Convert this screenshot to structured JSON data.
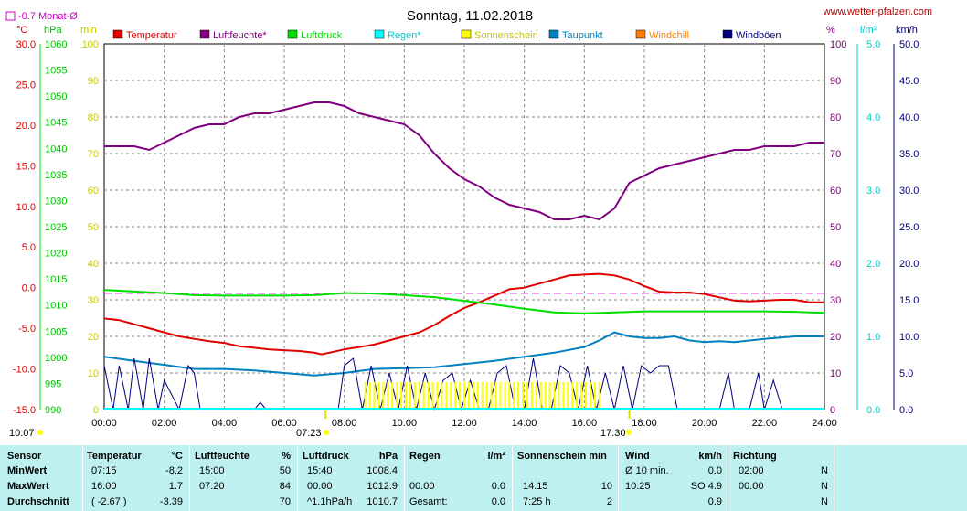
{
  "header": {
    "title": "Sonntag, 11.02.2018",
    "site": "www.wetter-pfalzen.com",
    "monthly_avg": "-0.7 Monat-Ø"
  },
  "units": {
    "celsius": "°C",
    "hpa": "hPa",
    "min": "min",
    "percent": "%",
    "rain": "l/m²",
    "kmh": "km/h"
  },
  "legend": [
    {
      "label": "Temperatur",
      "color": "#e00000"
    },
    {
      "label": "Luftfeuchte*",
      "color": "#800080"
    },
    {
      "label": "Luftdruck",
      "color": "#00e000"
    },
    {
      "label": "Regen*",
      "color": "#00ffff"
    },
    {
      "label": "Sonnenschein",
      "color": "#ffff00"
    },
    {
      "label": "Taupunkt",
      "color": "#0080c0"
    },
    {
      "label": "Windchill",
      "color": "#ff8000"
    },
    {
      "label": "Windböen",
      "color": "#000080"
    }
  ],
  "axes": {
    "temp_ticks": [
      "30.0",
      "25.0",
      "20.0",
      "15.0",
      "10.0",
      "5.0",
      "0.0",
      "-5.0",
      "-10.0",
      "-15.0"
    ],
    "hpa_ticks": [
      "1060",
      "1055",
      "1050",
      "1045",
      "1040",
      "1035",
      "1030",
      "1025",
      "1020",
      "1015",
      "1010",
      "1005",
      "1000",
      "995",
      "990"
    ],
    "min_ticks": [
      "100",
      "90",
      "80",
      "70",
      "60",
      "50",
      "40",
      "30",
      "20",
      "10",
      "0"
    ],
    "pct_ticks": [
      "100",
      "90",
      "80",
      "70",
      "60",
      "50",
      "40",
      "30",
      "20",
      "10",
      "0"
    ],
    "rain_ticks": [
      "5.0",
      "4.0",
      "3.0",
      "2.0",
      "1.0",
      "0.0"
    ],
    "wind_ticks": [
      "50.0",
      "45.0",
      "40.0",
      "35.0",
      "30.0",
      "25.0",
      "20.0",
      "15.0",
      "10.0",
      "5.0",
      "0.0"
    ],
    "x_ticks": [
      "00:00",
      "02:00",
      "04:00",
      "06:00",
      "08:00",
      "10:00",
      "12:00",
      "14:00",
      "16:00",
      "18:00",
      "20:00",
      "22:00",
      "24:00"
    ]
  },
  "sun_markers": {
    "moonrise": "10:07",
    "sunrise": "07:23",
    "sunset": "17:30"
  },
  "chart_data": {
    "type": "line",
    "title": "Sonntag, 11.02.2018",
    "x_unit": "hours",
    "xlim": [
      0,
      24
    ],
    "monthly_avg_temp": -0.7,
    "series": [
      {
        "name": "Temperatur",
        "axis": "temp",
        "ylim": [
          -15,
          30
        ],
        "color": "#e00000",
        "x": [
          0,
          0.5,
          1,
          1.5,
          2,
          2.5,
          3,
          3.5,
          4,
          4.5,
          5,
          5.5,
          6,
          6.5,
          7,
          7.25,
          7.5,
          8,
          8.5,
          9,
          9.5,
          10,
          10.5,
          11,
          11.5,
          12,
          12.5,
          13,
          13.5,
          14,
          14.5,
          15,
          15.5,
          16,
          16.5,
          17,
          17.5,
          18,
          18.5,
          19,
          19.5,
          20,
          20.5,
          21,
          21.5,
          22,
          22.5,
          23,
          23.5,
          24
        ],
        "y": [
          -3.8,
          -4.0,
          -4.5,
          -5.0,
          -5.5,
          -6.0,
          -6.3,
          -6.6,
          -6.8,
          -7.2,
          -7.4,
          -7.6,
          -7.7,
          -7.8,
          -8.0,
          -8.2,
          -8.0,
          -7.6,
          -7.3,
          -7.0,
          -6.5,
          -6.0,
          -5.5,
          -4.6,
          -3.5,
          -2.5,
          -1.8,
          -1.0,
          -0.2,
          0.0,
          0.5,
          1.0,
          1.5,
          1.6,
          1.7,
          1.5,
          1.0,
          0.2,
          -0.5,
          -0.6,
          -0.6,
          -0.8,
          -1.2,
          -1.6,
          -1.7,
          -1.6,
          -1.5,
          -1.5,
          -1.8,
          -1.8
        ]
      },
      {
        "name": "Luftfeuchte*",
        "axis": "pct",
        "ylim": [
          0,
          100
        ],
        "color": "#800080",
        "x": [
          0,
          0.5,
          1,
          1.5,
          2,
          2.5,
          3,
          3.5,
          4,
          4.5,
          5,
          5.5,
          6,
          6.5,
          7,
          7.5,
          8,
          8.5,
          9,
          9.5,
          10,
          10.5,
          11,
          11.5,
          12,
          12.5,
          13,
          13.5,
          14,
          14.5,
          15,
          15.5,
          16,
          16.5,
          17,
          17.5,
          18,
          18.5,
          19,
          19.5,
          20,
          20.5,
          21,
          21.5,
          22,
          22.5,
          23,
          23.5,
          24
        ],
        "y": [
          72,
          72,
          72,
          71,
          73,
          75,
          77,
          78,
          78,
          80,
          81,
          81,
          82,
          83,
          84,
          84,
          83,
          81,
          80,
          79,
          78,
          75,
          70,
          66,
          63,
          61,
          58,
          56,
          55,
          54,
          52,
          52,
          53,
          52,
          55,
          62,
          64,
          66,
          67,
          68,
          69,
          70,
          71,
          71,
          72,
          72,
          72,
          73,
          73
        ]
      },
      {
        "name": "Luftdruck",
        "axis": "hpa",
        "ylim": [
          990,
          1060
        ],
        "color": "#00e000",
        "x": [
          0,
          1,
          2,
          3,
          4,
          5,
          6,
          7,
          8,
          9,
          10,
          11,
          12,
          13,
          14,
          15,
          16,
          17,
          18,
          19,
          20,
          21,
          22,
          23,
          24
        ],
        "y": [
          1012.9,
          1012.6,
          1012.3,
          1011.9,
          1011.8,
          1011.8,
          1011.8,
          1011.9,
          1012.3,
          1012.2,
          1011.9,
          1011.5,
          1010.8,
          1010.1,
          1009.3,
          1008.6,
          1008.4,
          1008.6,
          1008.8,
          1008.8,
          1008.8,
          1008.8,
          1008.8,
          1008.7,
          1008.5
        ]
      },
      {
        "name": "Taupunkt",
        "axis": "temp",
        "ylim": [
          -15,
          30
        ],
        "color": "#0080c0",
        "x": [
          0,
          1,
          2,
          3,
          4,
          5,
          6,
          7,
          8,
          9,
          10,
          11,
          12,
          13,
          14,
          15,
          16,
          16.5,
          17,
          17.5,
          18,
          18.5,
          19,
          19.5,
          20,
          20.5,
          21,
          22,
          23,
          24
        ],
        "y": [
          -8.5,
          -9.0,
          -9.5,
          -10.0,
          -10.0,
          -10.2,
          -10.5,
          -10.8,
          -10.5,
          -10.0,
          -9.9,
          -9.8,
          -9.4,
          -9.0,
          -8.5,
          -8.0,
          -7.3,
          -6.5,
          -5.5,
          -6.0,
          -6.2,
          -6.2,
          -6.0,
          -6.5,
          -6.7,
          -6.6,
          -6.7,
          -6.3,
          -6.0,
          -6.0
        ]
      },
      {
        "name": "Windböen",
        "axis": "wind",
        "ylim": [
          0,
          50
        ],
        "color": "#000080",
        "x": [
          0,
          0.3,
          0.5,
          0.8,
          1.0,
          1.3,
          1.5,
          1.8,
          2.0,
          2.5,
          2.8,
          3.0,
          3.2,
          3.5,
          4.0,
          5.0,
          5.2,
          5.4,
          6.0,
          7.0,
          7.4,
          7.8,
          8.0,
          8.3,
          8.6,
          8.9,
          9.2,
          9.5,
          9.8,
          10.1,
          10.4,
          10.7,
          11.0,
          11.3,
          11.6,
          11.9,
          12.2,
          12.5,
          12.8,
          13.1,
          13.4,
          13.7,
          14.0,
          14.3,
          14.6,
          14.9,
          15.2,
          15.5,
          15.8,
          16.1,
          16.4,
          16.7,
          17.0,
          17.3,
          17.6,
          17.9,
          18.2,
          18.5,
          18.8,
          19.1,
          19.4,
          19.7,
          20.0,
          20.5,
          20.8,
          21.0,
          21.5,
          21.8,
          22.0,
          22.3,
          22.6,
          23.0,
          24.0
        ],
        "y": [
          6,
          0,
          6,
          0,
          7,
          0,
          7,
          0,
          4,
          0,
          6,
          5,
          0,
          0,
          0,
          0,
          1,
          0,
          0,
          0,
          0,
          0,
          6,
          7,
          0,
          6,
          0,
          5,
          0,
          6,
          0,
          5,
          0,
          4,
          5,
          0,
          4,
          0,
          0,
          5,
          6,
          0,
          0,
          7,
          0,
          0,
          6,
          5,
          0,
          6,
          0,
          5,
          0,
          6,
          0,
          6,
          5,
          6,
          6,
          0,
          0,
          0,
          0,
          0,
          5,
          0,
          0,
          5,
          0,
          4,
          0,
          0,
          0
        ]
      },
      {
        "name": "Sonnenschein",
        "axis": "min",
        "ylim": [
          0,
          100
        ],
        "color": "#ffff00",
        "x": [
          8.67,
          9,
          10,
          11,
          12,
          13,
          14,
          15,
          16,
          16.5
        ],
        "y": [
          5,
          5,
          5,
          5,
          5,
          5,
          5,
          5,
          5,
          5
        ]
      }
    ],
    "windchill": [],
    "rain": []
  },
  "table": {
    "header": [
      "Sensor",
      "Temperatur",
      "°C",
      "Luftfeuchte",
      "%",
      "Luftdruck",
      "hPa",
      "Regen",
      "l/m²",
      "Sonnenschein min",
      "Wind",
      "km/h",
      "Richtung"
    ],
    "rows": [
      {
        "label": "MinWert",
        "t_time": "07:15",
        "t_val": "-8.2",
        "h_time": "15:00",
        "h_val": "50",
        "p_time": "15:40",
        "p_val": "1008.4",
        "r_time": "",
        "r_val": "",
        "s_time": "",
        "s_val": "",
        "w_time": "Ø 10 min.",
        "w_val": "0.0",
        "d_time": "02:00",
        "d_val": "N"
      },
      {
        "label": "MaxWert",
        "t_time": "16:00",
        "t_val": "1.7",
        "h_time": "07:20",
        "h_val": "84",
        "p_time": "00:00",
        "p_val": "1012.9",
        "r_time": "00:00",
        "r_val": "0.0",
        "s_time": "14:15",
        "s_val": "10",
        "w_time": "10:25",
        "w_val": "SO 4.9",
        "d_time": "00:00",
        "d_val": "N"
      },
      {
        "label": "Durchschnitt",
        "t_time": "( -2.67 )",
        "t_val": "-3.39",
        "h_time": "",
        "h_val": "70",
        "p_time": "^1.1hPa/h",
        "p_val": "1010.7",
        "r_time": "Gesamt:",
        "r_val": "0.0",
        "s_time": "7:25 h",
        "s_val": "2",
        "w_time": "",
        "w_val": "0.9",
        "d_time": "",
        "d_val": "N"
      }
    ]
  }
}
